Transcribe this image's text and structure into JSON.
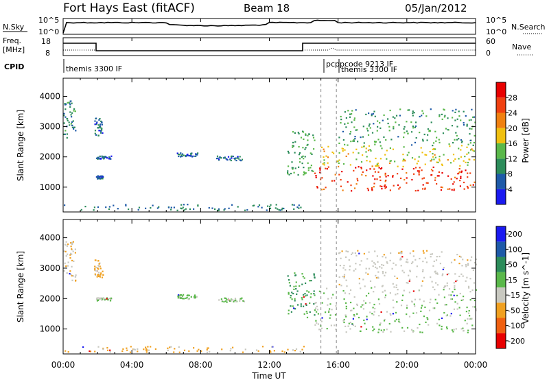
{
  "header": {
    "station": "Fort Hays East (fitACF)",
    "beam": "Beam 18",
    "date": "05/Jan/2012"
  },
  "summary_panels": {
    "nsky": {
      "left_label": "N.Sky",
      "right_label": "N.Search",
      "ticks_left": [
        "10^5",
        "10^0"
      ],
      "ticks_right": [
        "10^5",
        "10^0"
      ]
    },
    "freq": {
      "left_label_line1": "Freq.",
      "left_label_line2": "[MHz]",
      "right_label": "Nave",
      "ticks_left": [
        "18",
        "8"
      ],
      "ticks_right": [
        "60",
        "0"
      ]
    },
    "cpid": {
      "label": "CPID",
      "segments": [
        {
          "text": "themis 3300 IF"
        },
        {
          "text": "pcppcode 9213 IF"
        },
        {
          "text": "themis 3300 IF"
        }
      ]
    }
  },
  "chart_data": [
    {
      "type": "heatmap",
      "title": "",
      "xlabel": "",
      "ylabel": "Slant Range [km]",
      "x_unit": "hours UT",
      "xlim": [
        0,
        24
      ],
      "ylim": [
        180,
        4600
      ],
      "y_ticks": [
        1000,
        2000,
        3000,
        4000
      ],
      "colorbar": {
        "label": "Power [dB]",
        "ticks": [
          4,
          8,
          12,
          16,
          20,
          24,
          28
        ],
        "range": [
          0,
          32
        ],
        "colors": [
          "#1a1af0",
          "#1e5aa8",
          "#2c8c5a",
          "#5ab84a",
          "#f0c010",
          "#f08010",
          "#f04010",
          "#e80000"
        ]
      },
      "echo_regions": [
        {
          "t0": 0.0,
          "t1": 0.7,
          "r0": 2600,
          "r1": 3900,
          "value": 9
        },
        {
          "t0": 1.8,
          "t1": 2.3,
          "r0": 2700,
          "r1": 3300,
          "value": 7
        },
        {
          "t0": 1.9,
          "t1": 2.8,
          "r0": 1950,
          "r1": 2050,
          "value": 6
        },
        {
          "t0": 1.9,
          "t1": 2.3,
          "r0": 1300,
          "r1": 1400,
          "value": 6
        },
        {
          "t0": 6.6,
          "t1": 7.8,
          "r0": 2000,
          "r1": 2150,
          "value": 6
        },
        {
          "t0": 8.9,
          "t1": 10.5,
          "r0": 1900,
          "r1": 2050,
          "value": 7
        },
        {
          "t0": 13.0,
          "t1": 14.6,
          "r0": 1400,
          "r1": 2900,
          "value": 12
        },
        {
          "t0": 14.6,
          "t1": 24.0,
          "r0": 900,
          "r1": 1700,
          "value": 27
        },
        {
          "t0": 15.0,
          "t1": 24.0,
          "r0": 1700,
          "r1": 2400,
          "value": 17
        },
        {
          "t0": 16.0,
          "t1": 24.0,
          "r0": 2400,
          "r1": 3600,
          "value": 11
        },
        {
          "t0": 0.0,
          "t1": 14.0,
          "r0": 250,
          "r1": 450,
          "value": 8
        }
      ]
    },
    {
      "type": "heatmap",
      "title": "",
      "xlabel": "Time UT",
      "ylabel": "Slant Range [km]",
      "x_unit": "hours UT",
      "xlim": [
        0,
        24
      ],
      "ylim": [
        180,
        4600
      ],
      "x_ticks": [
        "00:00",
        "04:00",
        "08:00",
        "12:00",
        "16:00",
        "20:00",
        "00:00"
      ],
      "y_ticks": [
        1000,
        2000,
        3000,
        4000
      ],
      "colorbar": {
        "label": "Velocity [m s^-1]",
        "ticks": [
          "200",
          "100",
          "50",
          "15",
          "-15",
          "-50",
          "-100",
          "-200"
        ],
        "colors": [
          "#1a1af0",
          "#1e5aa8",
          "#2c8c5a",
          "#5ab84a",
          "#c8c8c0",
          "#f0a020",
          "#f06010",
          "#e80000"
        ]
      },
      "echo_regions": [
        {
          "t0": 0.0,
          "t1": 0.7,
          "r0": 2600,
          "r1": 3900,
          "value": -30
        },
        {
          "t0": 1.8,
          "t1": 2.3,
          "r0": 2700,
          "r1": 3300,
          "value": -40
        },
        {
          "t0": 1.9,
          "t1": 2.8,
          "r0": 1950,
          "r1": 2050,
          "value": 0
        },
        {
          "t0": 6.6,
          "t1": 7.8,
          "r0": 2000,
          "r1": 2150,
          "value": 10
        },
        {
          "t0": 8.9,
          "t1": 10.5,
          "r0": 1900,
          "r1": 2050,
          "value": 0
        },
        {
          "t0": 13.0,
          "t1": 14.6,
          "r0": 1400,
          "r1": 2900,
          "value": 30
        },
        {
          "t0": 14.6,
          "t1": 24.0,
          "r0": 900,
          "r1": 2400,
          "value": 0
        },
        {
          "t0": 16.0,
          "t1": 24.0,
          "r0": 2400,
          "r1": 3600,
          "value": -20
        },
        {
          "t0": 0.0,
          "t1": 14.0,
          "r0": 250,
          "r1": 450,
          "value": -40
        }
      ]
    }
  ],
  "markers": {
    "vertical_lines_hours": [
      15.0,
      15.9
    ]
  }
}
